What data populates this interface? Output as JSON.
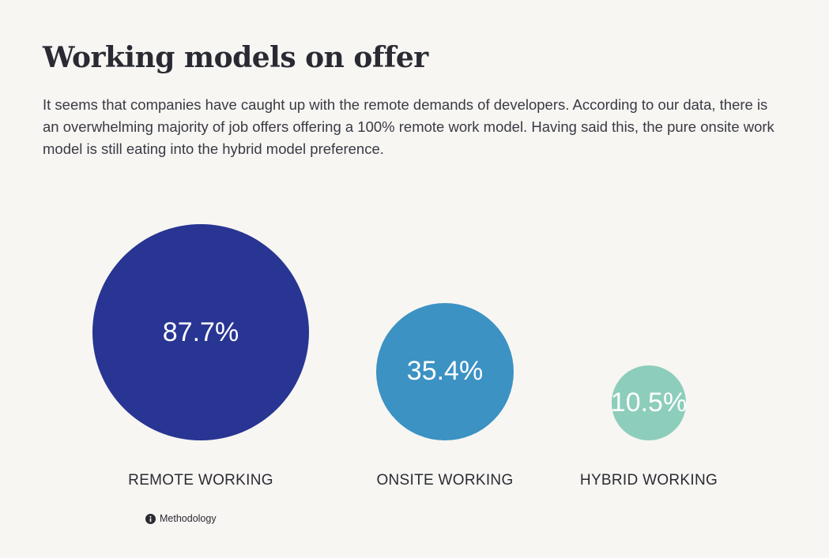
{
  "header": {
    "title": "Working models on offer",
    "intro": "It seems that companies have caught up with the remote demands of developers. According to our data, there is an overwhelming majority of job offers offering a 100% remote work model. Having said this, the pure onsite work model is still eating into the hybrid model preference."
  },
  "chart_data": {
    "type": "bubble",
    "categories": [
      "REMOTE WORKING",
      "ONSITE WORKING",
      "HYBRID WORKING"
    ],
    "values": [
      87.7,
      35.4,
      10.5
    ],
    "value_labels": [
      "87.7%",
      "35.4%",
      "10.5%"
    ],
    "unit": "%",
    "colors": [
      "#283593",
      "#3b92c3",
      "#8dcdbb"
    ]
  },
  "footer": {
    "methodology_label": "Methodology",
    "methodology_icon": "info-icon"
  }
}
